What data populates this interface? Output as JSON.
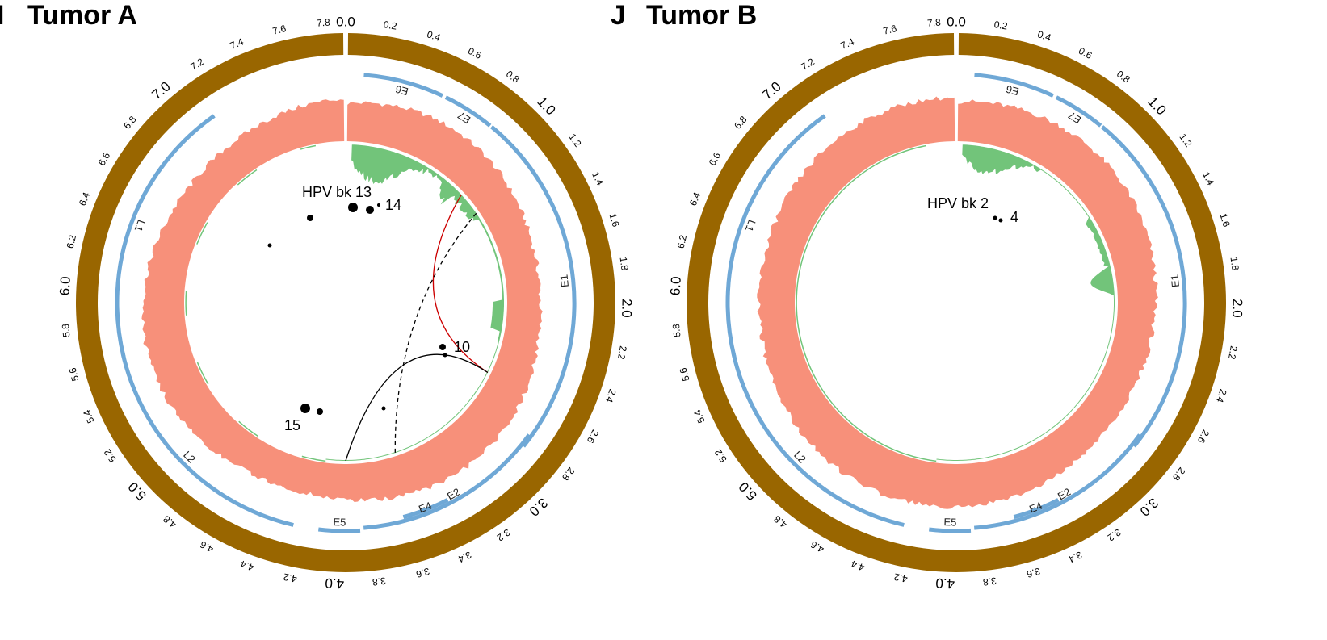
{
  "colors": {
    "genome_ring": "#996600",
    "gene_track": "#6fa8d6",
    "depth_track": "#f7907a",
    "coverage_track": "#72c47a",
    "link_red": "#cc0000",
    "link_black": "#000000"
  },
  "genome": {
    "max": 7.9,
    "ticks": [
      "0.0",
      "0.2",
      "0.4",
      "0.6",
      "0.8",
      "1.0",
      "1.2",
      "1.4",
      "1.6",
      "1.8",
      "2.0",
      "2.2",
      "2.4",
      "2.6",
      "2.8",
      "3.0",
      "3.2",
      "3.4",
      "3.6",
      "3.8",
      "4.0",
      "4.2",
      "4.4",
      "4.6",
      "4.8",
      "5.0",
      "5.2",
      "5.4",
      "5.6",
      "5.8",
      "6.0",
      "6.2",
      "6.4",
      "6.6",
      "6.8",
      "7.0",
      "7.2",
      "7.4",
      "7.6",
      "7.8"
    ]
  },
  "genes": [
    {
      "name": "E6",
      "start": 0.1,
      "end": 0.55
    },
    {
      "name": "E7",
      "start": 0.57,
      "end": 0.86
    },
    {
      "name": "E1",
      "start": 0.87,
      "end": 2.83
    },
    {
      "name": "E2",
      "start": 2.76,
      "end": 3.85
    },
    {
      "name": "E4",
      "start": 3.35,
      "end": 3.62
    },
    {
      "name": "E5",
      "start": 3.87,
      "end": 4.1
    },
    {
      "name": "L2",
      "start": 4.24,
      "end": 5.65
    },
    {
      "name": "L1",
      "start": 5.62,
      "end": 7.13
    }
  ],
  "panels": [
    {
      "id": "tumor-a",
      "letter": "I",
      "title": "Tumor A",
      "annotations": [
        {
          "text": "HPV bk 13"
        },
        {
          "text": "14"
        },
        {
          "text": "10"
        },
        {
          "text": "15"
        }
      ],
      "links": [
        {
          "from": 2.55,
          "to": 1.03,
          "color": "red",
          "style": "solid"
        },
        {
          "from": 2.55,
          "to": 3.95,
          "color": "black",
          "style": "solid"
        },
        {
          "from": 1.22,
          "to": 3.55,
          "color": "black",
          "style": "dashed"
        }
      ]
    },
    {
      "id": "tumor-b",
      "letter": "J",
      "title": "Tumor B",
      "annotations": [
        {
          "text": "HPV bk 2"
        },
        {
          "text": "4"
        }
      ],
      "links": []
    }
  ]
}
